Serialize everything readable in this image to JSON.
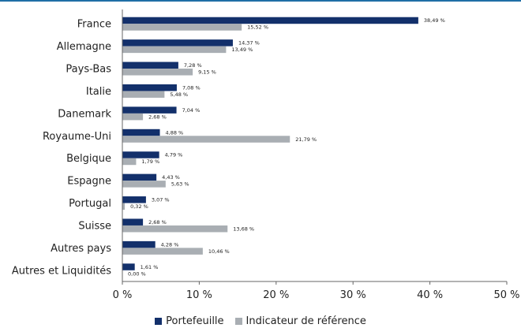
{
  "colors": {
    "portefeuille": "#13306b",
    "indicateur": "#a9aeb3",
    "axis": "#666666",
    "top_rule": "#1f6fa6"
  },
  "chart_data": {
    "type": "bar",
    "orientation": "horizontal",
    "categories": [
      "France",
      "Allemagne",
      "Pays-Bas",
      "Italie",
      "Danemark",
      "Royaume-Uni",
      "Belgique",
      "Espagne",
      "Portugal",
      "Suisse",
      "Autres pays",
      "Autres et Liquidités"
    ],
    "series": [
      {
        "name": "Portefeuille",
        "values": [
          38.49,
          14.37,
          7.28,
          7.08,
          7.04,
          4.88,
          4.79,
          4.43,
          3.07,
          2.68,
          4.28,
          1.61
        ],
        "labels": [
          "38,49 %",
          "14,37 %",
          "7,28 %",
          "7,08 %",
          "7,04 %",
          "4,88 %",
          "4,79 %",
          "4,43 %",
          "3,07 %",
          "2,68 %",
          "4,28 %",
          "1,61 %"
        ]
      },
      {
        "name": "Indicateur de référence",
        "values": [
          15.52,
          13.49,
          9.15,
          5.48,
          2.68,
          21.79,
          1.79,
          5.63,
          0.32,
          13.68,
          10.46,
          0.0
        ],
        "labels": [
          "15,52 %",
          "13,49 %",
          "9,15 %",
          "5,48 %",
          "2,68 %",
          "21,79 %",
          "1,79 %",
          "5,63 %",
          "0,32 %",
          "13,68 %",
          "10,46 %",
          "0,00 %"
        ]
      }
    ],
    "xlim": [
      0,
      50
    ],
    "xticks": [
      0,
      10,
      20,
      30,
      40,
      50
    ],
    "xtick_labels": [
      "0 %",
      "10 %",
      "20 %",
      "30 %",
      "40 %",
      "50 %"
    ],
    "grid": false,
    "legend_position": "bottom-center"
  }
}
